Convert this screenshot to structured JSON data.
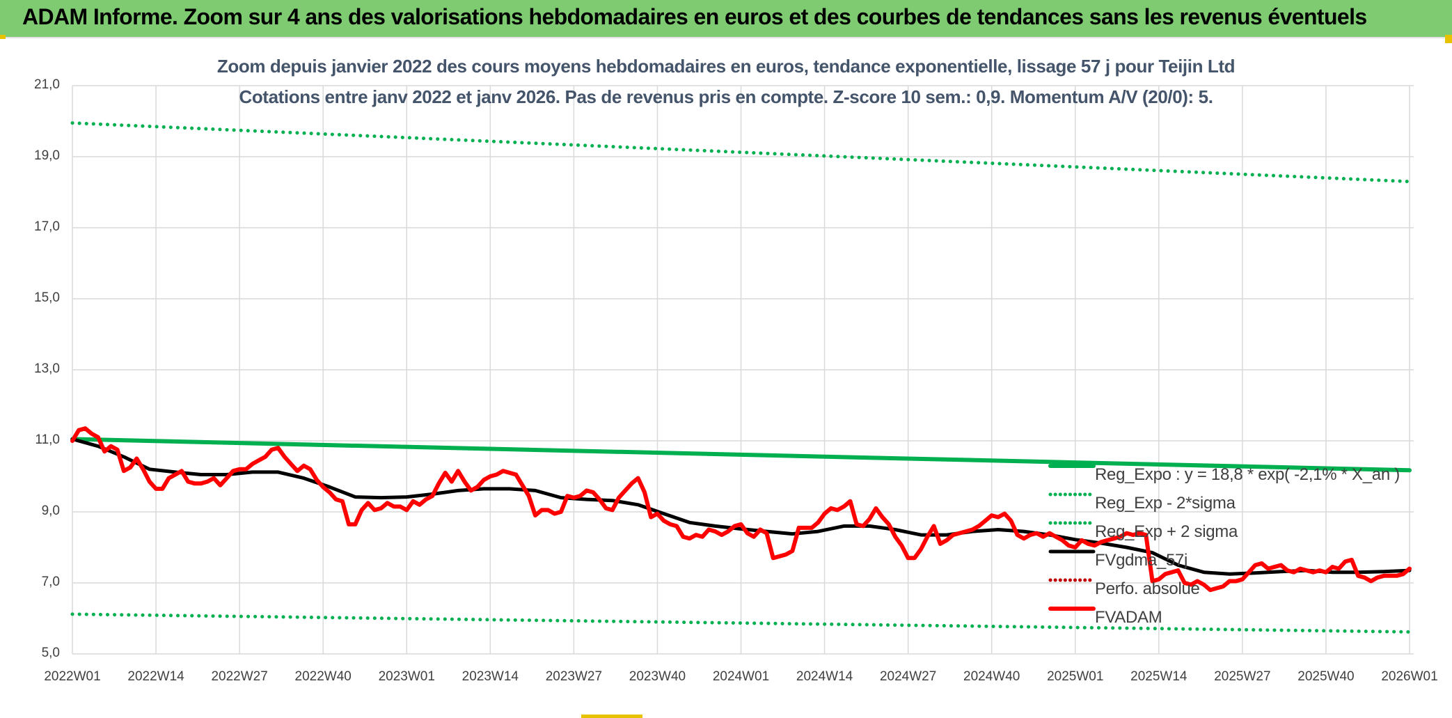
{
  "banner": {
    "title": "ADAM Informe. Zoom sur 4 ans des valorisations hebdomadaires en euros et des courbes de tendances sans les revenus éventuels"
  },
  "colors": {
    "banner_bg": "#7fcb71",
    "reg_expo": "#00b050",
    "sigma": "#00b050",
    "fvgdma": "#000000",
    "fvadam": "#ff0000",
    "perfo": "#c00000",
    "grid": "#d9d9d9"
  },
  "chart_data": {
    "type": "line",
    "title": "Zoom depuis janvier 2022 des cours moyens hebdomadaires en euros, tendance exponentielle, lissage 57 j pour Teijin Ltd",
    "subtitle": "Cotations entre janv 2022 et janv 2026. Pas de revenus pris en compte. Z-score 10 sem.: 0,9. Momentum A/V (20/0): 5.",
    "xlabel": "",
    "ylabel": "",
    "ylim": [
      5,
      21
    ],
    "yticks": [
      "5,0",
      "7,0",
      "9,0",
      "11,0",
      "13,0",
      "15,0",
      "17,0",
      "19,0",
      "21,0"
    ],
    "xticks": [
      "2022W01",
      "2022W14",
      "2022W27",
      "2022W40",
      "2023W01",
      "2023W14",
      "2023W27",
      "2023W40",
      "2024W01",
      "2024W14",
      "2024W27",
      "2024W40",
      "2025W01",
      "2025W14",
      "2025W27",
      "2025W40",
      "2026W01"
    ],
    "x_week_range": [
      0,
      208
    ],
    "grid": true,
    "legend_position": "bottom-right",
    "series": [
      {
        "name": "Reg_Expo : y = 18,8 * exp( -2,1% *  X_an )",
        "style": "solid-thick",
        "color": "#00b050",
        "x": [
          0,
          208
        ],
        "values": [
          11.05,
          10.17
        ]
      },
      {
        "name": "Reg_Exp - 2*sigma",
        "style": "dotted",
        "color": "#00b050",
        "x": [
          0,
          208
        ],
        "values": [
          6.12,
          5.62
        ]
      },
      {
        "name": "Reg_Exp + 2 sigma",
        "style": "dotted",
        "color": "#00b050",
        "x": [
          0,
          208
        ],
        "values": [
          19.95,
          18.3
        ]
      },
      {
        "name": "FVgdma_57j",
        "style": "solid",
        "color": "#000000",
        "x": [
          0,
          4,
          8,
          12,
          16,
          20,
          24,
          28,
          32,
          36,
          40,
          44,
          48,
          52,
          56,
          60,
          64,
          68,
          72,
          76,
          80,
          84,
          88,
          92,
          96,
          100,
          104,
          108,
          112,
          116,
          120,
          124,
          128,
          132,
          136,
          140,
          144,
          148,
          152,
          156,
          160,
          164,
          168,
          172,
          176,
          180,
          184,
          188,
          192,
          196,
          200,
          204,
          208
        ],
        "values": [
          11.05,
          10.85,
          10.55,
          10.2,
          10.12,
          10.05,
          10.05,
          10.12,
          10.12,
          9.95,
          9.7,
          9.42,
          9.4,
          9.42,
          9.5,
          9.6,
          9.65,
          9.65,
          9.6,
          9.4,
          9.35,
          9.32,
          9.2,
          8.95,
          8.7,
          8.6,
          8.52,
          8.45,
          8.38,
          8.45,
          8.6,
          8.6,
          8.5,
          8.35,
          8.35,
          8.45,
          8.5,
          8.45,
          8.35,
          8.22,
          8.12,
          8.0,
          7.85,
          7.5,
          7.3,
          7.25,
          7.28,
          7.32,
          7.35,
          7.3,
          7.3,
          7.32,
          7.35
        ]
      },
      {
        "name": "Perfo. absolue",
        "style": "dotted",
        "color": "#c00000",
        "x": [],
        "values": []
      },
      {
        "name": "FVADAM",
        "style": "solid-thick",
        "color": "#ff0000",
        "x": [
          0,
          1,
          2,
          3,
          4,
          5,
          6,
          7,
          8,
          9,
          10,
          11,
          12,
          13,
          14,
          15,
          16,
          17,
          18,
          19,
          20,
          21,
          22,
          23,
          24,
          25,
          26,
          27,
          28,
          29,
          30,
          31,
          32,
          33,
          34,
          35,
          36,
          37,
          38,
          39,
          40,
          41,
          42,
          43,
          44,
          45,
          46,
          47,
          48,
          49,
          50,
          51,
          52,
          53,
          54,
          55,
          56,
          57,
          58,
          59,
          60,
          61,
          62,
          63,
          64,
          65,
          66,
          67,
          68,
          69,
          70,
          71,
          72,
          73,
          74,
          75,
          76,
          77,
          78,
          79,
          80,
          81,
          82,
          83,
          84,
          85,
          86,
          87,
          88,
          89,
          90,
          91,
          92,
          93,
          94,
          95,
          96,
          97,
          98,
          99,
          100,
          101,
          102,
          103,
          104,
          105,
          106,
          107,
          108,
          109,
          110,
          111,
          112,
          113,
          114,
          115,
          116,
          117,
          118,
          119,
          120,
          121,
          122,
          123,
          124,
          125,
          126,
          127,
          128,
          129,
          130,
          131,
          132,
          133,
          134,
          135,
          136,
          137,
          138,
          139,
          140,
          141,
          142,
          143,
          144,
          145,
          146,
          147,
          148,
          149,
          150,
          151,
          152,
          153,
          154,
          155,
          156,
          157,
          158,
          159,
          160,
          161,
          162,
          163,
          164,
          165,
          166,
          167,
          168,
          169,
          170,
          171,
          172,
          173,
          174,
          175,
          176,
          177,
          178,
          179,
          180,
          181,
          182,
          183,
          184,
          185,
          186,
          187,
          188,
          189,
          190,
          191,
          192,
          193,
          194,
          195,
          196,
          197,
          198,
          199,
          200,
          201,
          202,
          203,
          204,
          205,
          206,
          207,
          208
        ],
        "values": [
          11.0,
          11.3,
          11.35,
          11.2,
          11.1,
          10.7,
          10.85,
          10.75,
          10.15,
          10.25,
          10.5,
          10.2,
          9.85,
          9.65,
          9.65,
          9.95,
          10.05,
          10.15,
          9.85,
          9.8,
          9.8,
          9.85,
          9.95,
          9.75,
          9.95,
          10.15,
          10.2,
          10.2,
          10.35,
          10.45,
          10.55,
          10.75,
          10.8,
          10.55,
          10.35,
          10.15,
          10.3,
          10.2,
          9.9,
          9.7,
          9.55,
          9.35,
          9.3,
          8.65,
          8.65,
          9.05,
          9.25,
          9.05,
          9.1,
          9.25,
          9.15,
          9.15,
          9.05,
          9.3,
          9.2,
          9.35,
          9.45,
          9.8,
          10.1,
          9.85,
          10.15,
          9.85,
          9.6,
          9.7,
          9.9,
          10.0,
          10.05,
          10.15,
          10.1,
          10.05,
          9.75,
          9.45,
          8.9,
          9.05,
          9.05,
          8.95,
          9.0,
          9.45,
          9.4,
          9.45,
          9.6,
          9.55,
          9.35,
          9.1,
          9.05,
          9.4,
          9.6,
          9.8,
          9.95,
          9.55,
          8.85,
          8.95,
          8.75,
          8.65,
          8.6,
          8.3,
          8.25,
          8.35,
          8.3,
          8.5,
          8.45,
          8.35,
          8.45,
          8.6,
          8.65,
          8.4,
          8.3,
          8.5,
          8.4,
          7.7,
          7.75,
          7.8,
          7.9,
          8.55,
          8.55,
          8.55,
          8.7,
          8.95,
          9.1,
          9.05,
          9.15,
          9.3,
          8.65,
          8.6,
          8.8,
          9.1,
          8.85,
          8.65,
          8.3,
          8.05,
          7.7,
          7.7,
          7.95,
          8.3,
          8.6,
          8.1,
          8.2,
          8.35,
          8.4,
          8.45,
          8.5,
          8.6,
          8.75,
          8.9,
          8.85,
          8.95,
          8.75,
          8.35,
          8.25,
          8.35,
          8.4,
          8.3,
          8.4,
          8.3,
          8.2,
          8.05,
          8.0,
          8.2,
          8.1,
          8.05,
          8.15,
          8.2,
          8.25,
          8.3,
          8.4,
          8.35,
          8.4,
          8.35,
          7.05,
          7.1,
          7.25,
          7.3,
          7.35,
          7.0,
          6.95,
          7.05,
          6.95,
          6.8,
          6.85,
          6.9,
          7.05,
          7.05,
          7.1,
          7.3,
          7.5,
          7.55,
          7.4,
          7.45,
          7.5,
          7.35,
          7.3,
          7.4,
          7.35,
          7.3,
          7.35,
          7.3,
          7.45,
          7.4,
          7.6,
          7.65,
          7.2,
          7.15,
          7.05,
          7.15,
          7.2,
          7.2,
          7.2,
          7.25,
          7.4
        ]
      }
    ]
  }
}
